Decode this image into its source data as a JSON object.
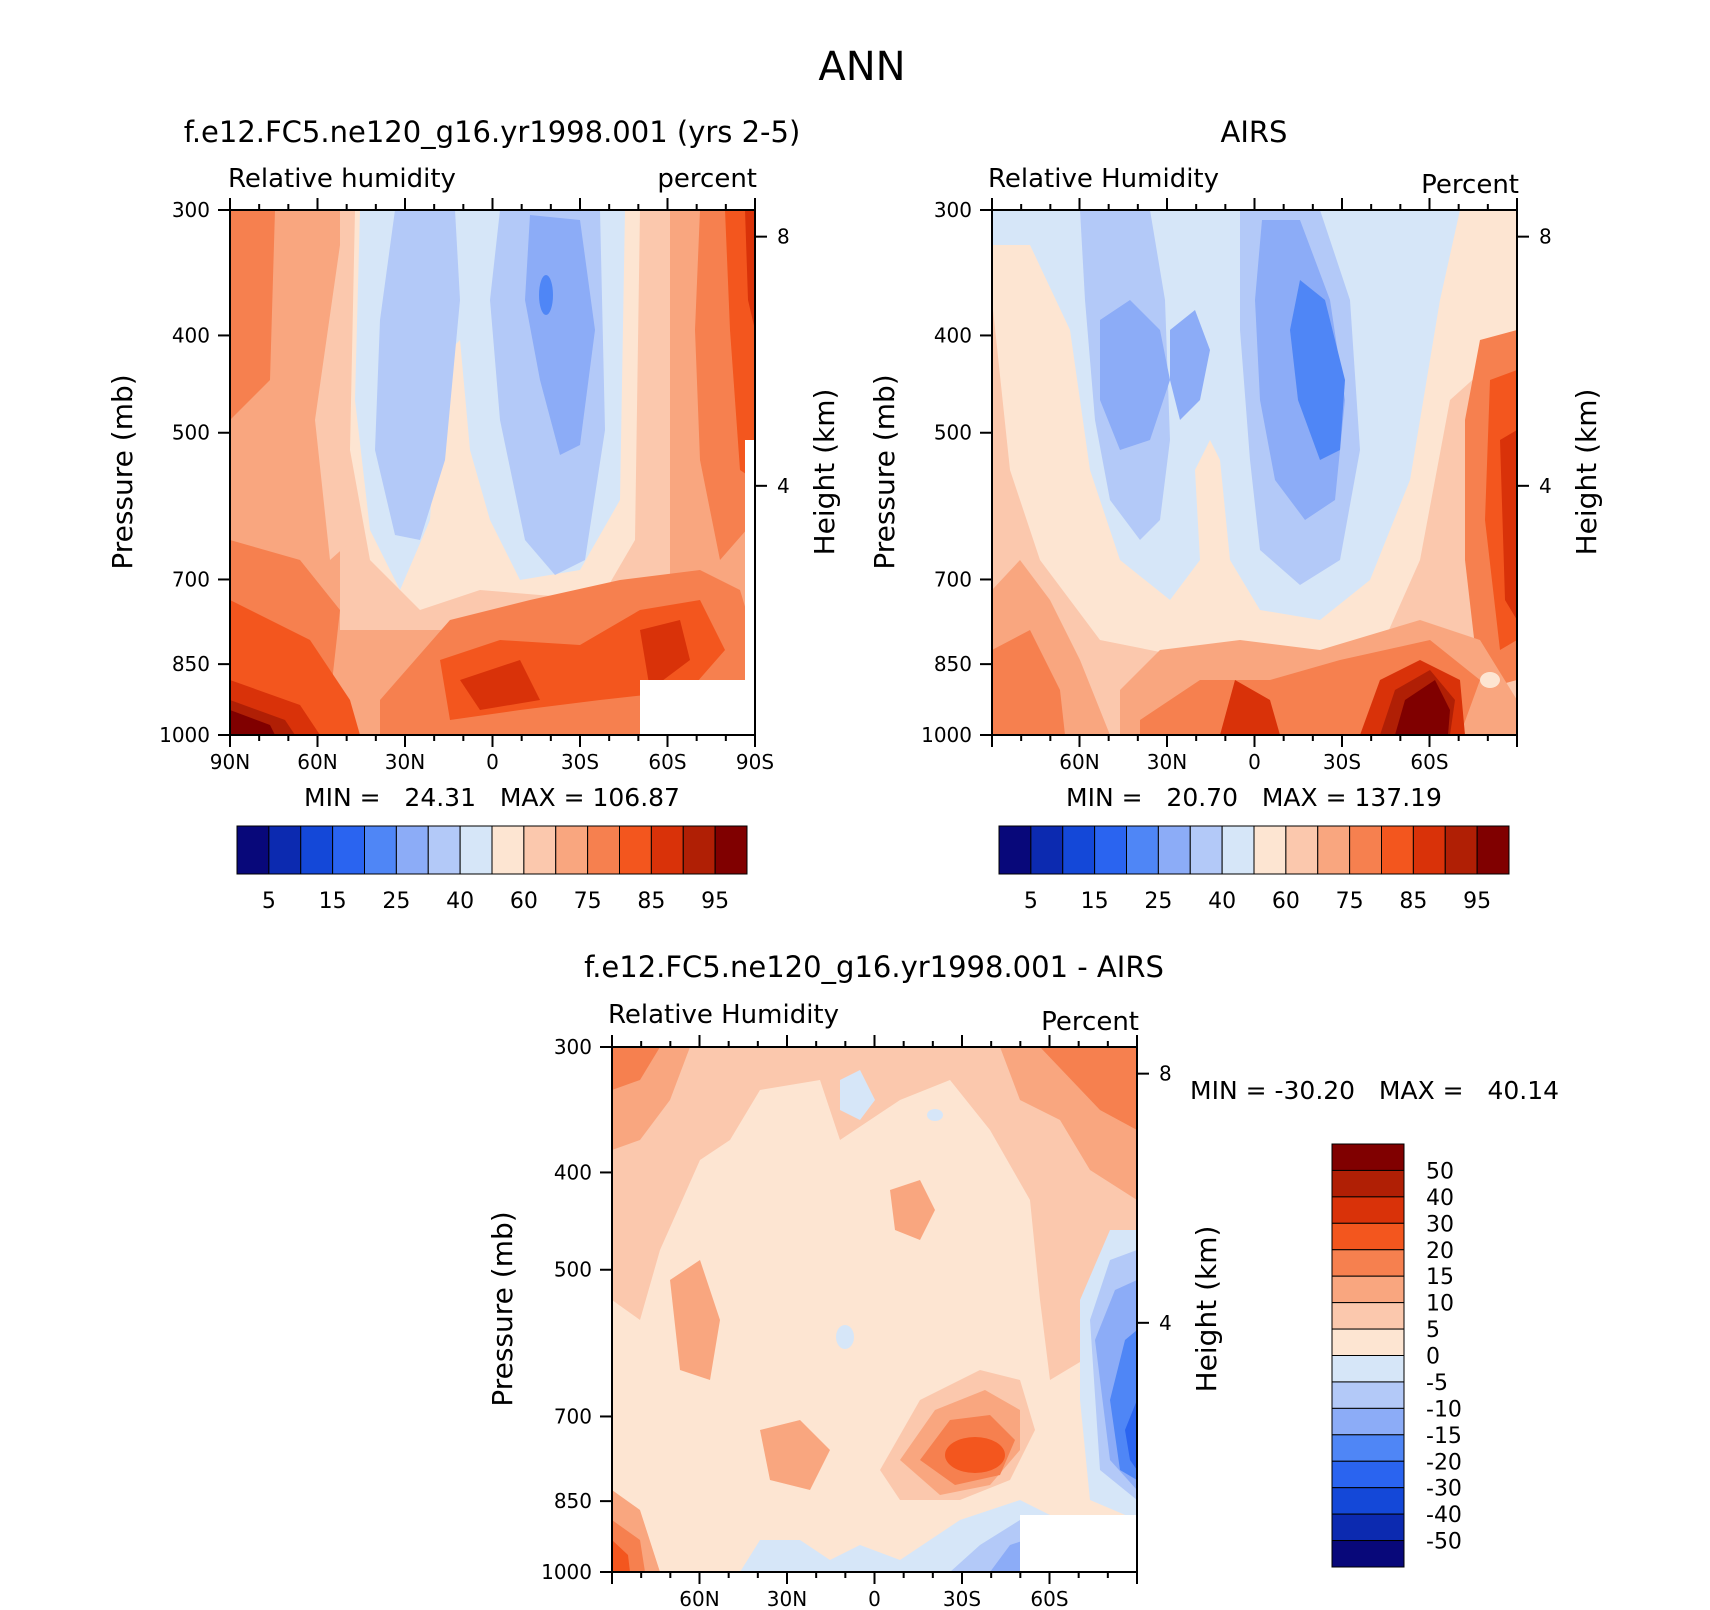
{
  "page_title": "ANN",
  "colors": {
    "rh_scale": [
      "#08087a",
      "#0c2ab0",
      "#1448d8",
      "#2a64f0",
      "#4f86f6",
      "#8cacf7",
      "#b3c9f8",
      "#d6e6f8",
      "#fde5d2",
      "#fbc8ad",
      "#f9a67f",
      "#f6804f",
      "#f3561e",
      "#d93209",
      "#b01f05",
      "#800000"
    ],
    "diff_scale": [
      "#08087a",
      "#0c2ab0",
      "#1448d8",
      "#2a64f0",
      "#4f86f6",
      "#8cacf7",
      "#b3c9f8",
      "#d6e6f8",
      "#fde5d2",
      "#fbc8ad",
      "#f9a67f",
      "#f6804f",
      "#f3561e",
      "#d93209",
      "#b01f05",
      "#800000"
    ]
  },
  "chart_data": [
    {
      "type": "contour",
      "title": "f.e12.FC5.ne120_g16.yr1998.001 (yrs 2-5)",
      "subtitle_left": "Relative humidity",
      "subtitle_right": "percent",
      "ylabel": "Pressure (mb)",
      "ylabel_right": "Height (km)",
      "y_ticks": [
        "300",
        "400",
        "500",
        "700",
        "850",
        "1000"
      ],
      "y_tick_values": [
        300,
        400,
        500,
        700,
        850,
        1000
      ],
      "right_ticks": [
        "8",
        "4"
      ],
      "right_tick_values": [
        8,
        4
      ],
      "x_ticks": [
        "90N",
        "60N",
        "30N",
        "0",
        "30S",
        "60S",
        "90S"
      ],
      "x_tick_values": [
        90,
        60,
        30,
        0,
        -30,
        -60,
        -90
      ],
      "xlim": [
        90,
        -90
      ],
      "ylim": [
        300,
        1000
      ],
      "min_label": "MIN =   24.31   MAX = 106.87",
      "min": 24.31,
      "max": 106.87,
      "colorbar_labels": [
        "5",
        "15",
        "25",
        "40",
        "60",
        "75",
        "85",
        "95"
      ],
      "levels": [
        5,
        10,
        15,
        20,
        25,
        30,
        40,
        50,
        60,
        65,
        75,
        80,
        85,
        90,
        95
      ]
    },
    {
      "type": "contour",
      "title": "AIRS",
      "subtitle_left": "Relative Humidity",
      "subtitle_right": "Percent",
      "ylabel": "Pressure (mb)",
      "ylabel_right": "Height (km)",
      "y_ticks": [
        "300",
        "400",
        "500",
        "700",
        "850",
        "1000"
      ],
      "y_tick_values": [
        300,
        400,
        500,
        700,
        850,
        1000
      ],
      "right_ticks": [
        "8",
        "4"
      ],
      "right_tick_values": [
        8,
        4
      ],
      "x_ticks": [
        "60N",
        "30N",
        "0",
        "30S",
        "60S"
      ],
      "x_tick_values": [
        60,
        30,
        0,
        -30,
        -60
      ],
      "xlim": [
        90,
        -90
      ],
      "ylim": [
        300,
        1000
      ],
      "min_label": "MIN =   20.70   MAX = 137.19",
      "min": 20.7,
      "max": 137.19,
      "colorbar_labels": [
        "5",
        "15",
        "25",
        "40",
        "60",
        "75",
        "85",
        "95"
      ],
      "levels": [
        5,
        10,
        15,
        20,
        25,
        30,
        40,
        50,
        60,
        65,
        75,
        80,
        85,
        90,
        95
      ]
    },
    {
      "type": "contour",
      "title": "f.e12.FC5.ne120_g16.yr1998.001 - AIRS",
      "subtitle_left": "Relative Humidity",
      "subtitle_right": "Percent",
      "ylabel": "Pressure (mb)",
      "ylabel_right": "Height (km)",
      "y_ticks": [
        "300",
        "400",
        "500",
        "700",
        "850",
        "1000"
      ],
      "y_tick_values": [
        300,
        400,
        500,
        700,
        850,
        1000
      ],
      "right_ticks": [
        "8",
        "4"
      ],
      "right_tick_values": [
        8,
        4
      ],
      "x_ticks": [
        "60N",
        "30N",
        "0",
        "30S",
        "60S"
      ],
      "x_tick_values": [
        60,
        30,
        0,
        -30,
        -60
      ],
      "xlim": [
        90,
        -90
      ],
      "ylim": [
        300,
        1000
      ],
      "min_label": "MIN = -30.20   MAX =   40.14",
      "min": -30.2,
      "max": 40.14,
      "colorbar_labels": [
        "50",
        "40",
        "30",
        "20",
        "15",
        "10",
        "5",
        "0",
        "-5",
        "-10",
        "-15",
        "-20",
        "-30",
        "-40",
        "-50"
      ],
      "levels": [
        -50,
        -40,
        -30,
        -20,
        -15,
        -10,
        -5,
        0,
        5,
        10,
        15,
        20,
        30,
        40,
        50
      ]
    }
  ]
}
